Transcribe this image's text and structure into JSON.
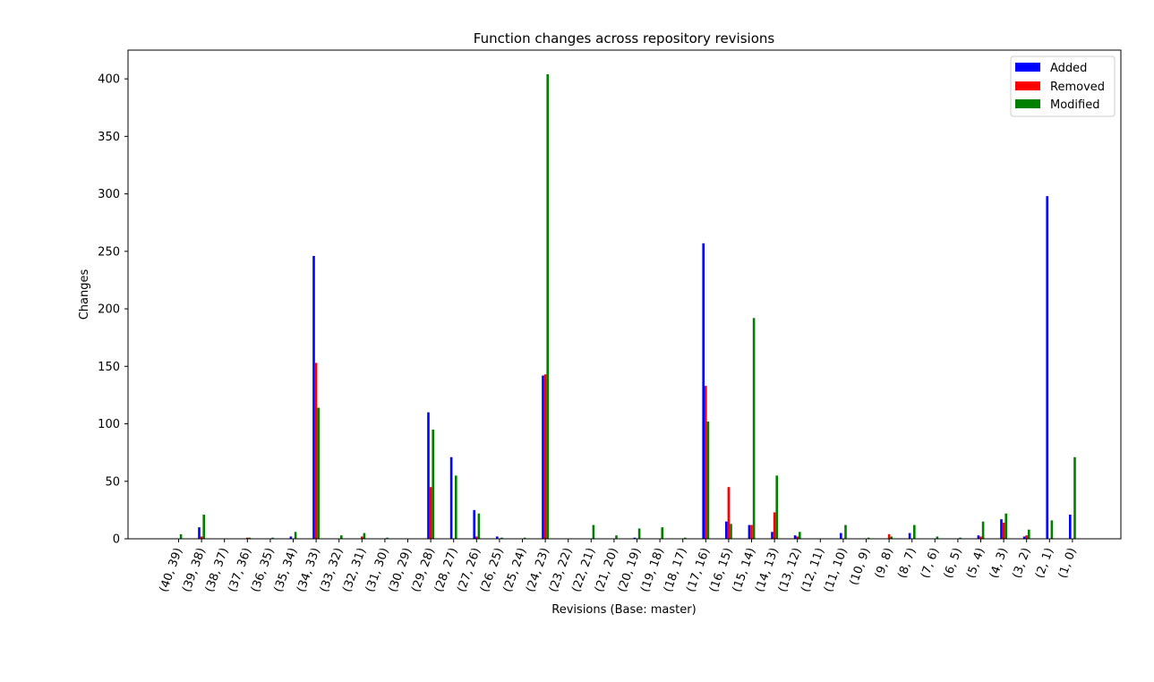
{
  "chart_data": {
    "type": "bar",
    "title": "Function changes across repository revisions",
    "xlabel": "Revisions (Base: master)",
    "ylabel": "Changes",
    "ylim": [
      0,
      425
    ],
    "yticks": [
      0,
      50,
      100,
      150,
      200,
      250,
      300,
      350,
      400
    ],
    "legend_position": "top-right",
    "grid": false,
    "categories": [
      "(40, 39)",
      "(39, 38)",
      "(38, 37)",
      "(37, 36)",
      "(36, 35)",
      "(35, 34)",
      "(34, 33)",
      "(33, 32)",
      "(32, 31)",
      "(31, 30)",
      "(30, 29)",
      "(29, 28)",
      "(28, 27)",
      "(27, 26)",
      "(26, 25)",
      "(25, 24)",
      "(24, 23)",
      "(23, 22)",
      "(22, 21)",
      "(21, 20)",
      "(20, 19)",
      "(19, 18)",
      "(18, 17)",
      "(17, 16)",
      "(16, 15)",
      "(15, 14)",
      "(14, 13)",
      "(13, 12)",
      "(12, 11)",
      "(11, 10)",
      "(10, 9)",
      "(9, 8)",
      "(8, 7)",
      "(7, 6)",
      "(6, 5)",
      "(5, 4)",
      "(4, 3)",
      "(3, 2)",
      "(2, 1)",
      "(1, 0)"
    ],
    "series": [
      {
        "name": "Added",
        "color": "#0000ff",
        "values": [
          0,
          10,
          0,
          0,
          0,
          2,
          246,
          0,
          0,
          0,
          0,
          110,
          71,
          25,
          2,
          0,
          142,
          0,
          0,
          0,
          1,
          0,
          0,
          257,
          15,
          12,
          6,
          3,
          0,
          5,
          0,
          0,
          5,
          0,
          0,
          3,
          17,
          2,
          298,
          21
        ]
      },
      {
        "name": "Removed",
        "color": "#ff0000",
        "values": [
          0,
          2,
          0,
          1,
          0,
          0,
          153,
          0,
          2,
          0,
          0,
          45,
          0,
          2,
          0,
          0,
          143,
          0,
          0,
          0,
          0,
          0,
          0,
          133,
          45,
          12,
          23,
          2,
          0,
          0,
          0,
          4,
          0,
          0,
          0,
          2,
          14,
          3,
          0,
          0
        ]
      },
      {
        "name": "Modified",
        "color": "#008000",
        "values": [
          4,
          21,
          0,
          1,
          1,
          6,
          114,
          3,
          5,
          1,
          0,
          95,
          55,
          22,
          1,
          1,
          404,
          0,
          12,
          3,
          9,
          10,
          1,
          102,
          13,
          192,
          55,
          6,
          0,
          12,
          1,
          2,
          12,
          2,
          1,
          15,
          22,
          8,
          16,
          71
        ]
      }
    ]
  }
}
